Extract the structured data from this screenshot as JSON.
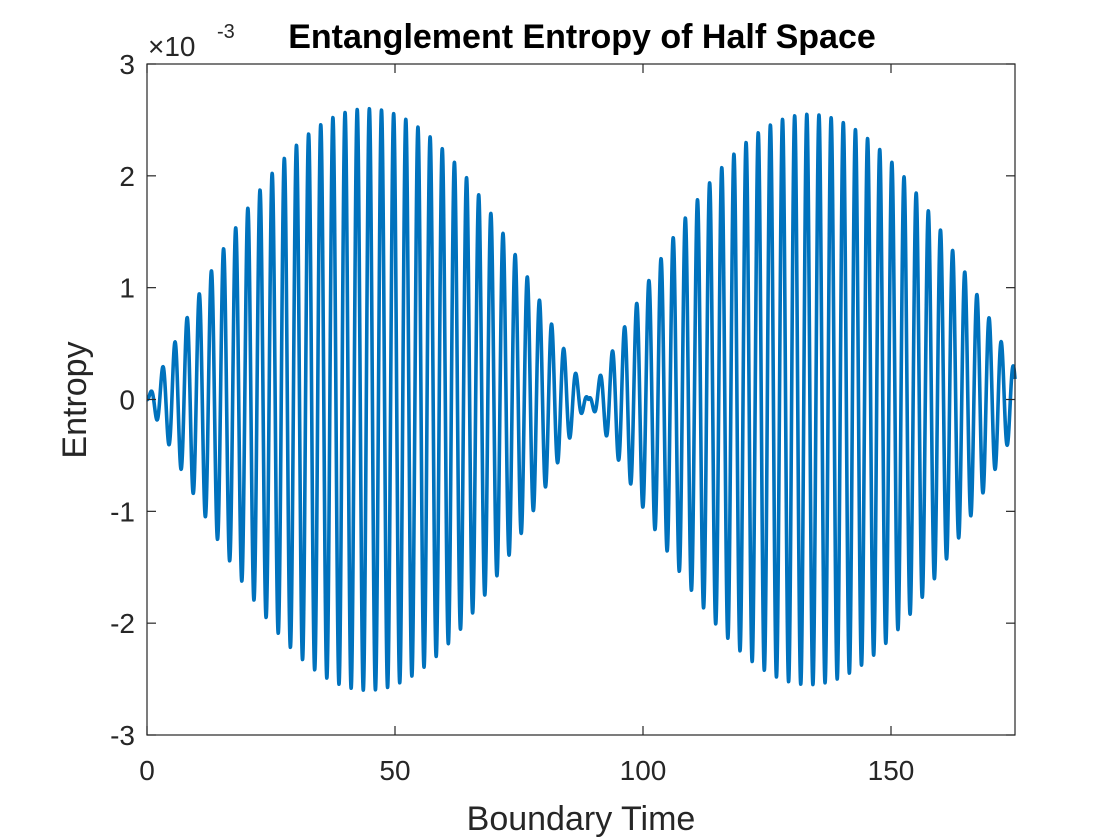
{
  "chart_data": {
    "type": "line",
    "title": "Entanglement Entropy of Half Space",
    "xlabel": "Boundary Time",
    "ylabel": "Entropy",
    "xlim": [
      0,
      175
    ],
    "ylim": [
      -3,
      3
    ],
    "y_scale_multiplier": "×10",
    "y_scale_exponent": "-3",
    "xticks": [
      0,
      50,
      100,
      150
    ],
    "yticks": [
      -3,
      -2,
      -1,
      0,
      1,
      2,
      3
    ],
    "xtick_labels": [
      "0",
      "50",
      "100",
      "150"
    ],
    "ytick_labels": [
      "-3",
      "-2",
      "-1",
      "0",
      "1",
      "2",
      "3"
    ],
    "grid": false,
    "legend": "none",
    "series": [
      {
        "line_color": "#0072BD",
        "beat_period": 89,
        "carrier_period": 2.45,
        "amplitude_envelope_peaks": [
          {
            "x": 45,
            "y": 2.6
          },
          {
            "x": 134,
            "y": 2.55
          }
        ],
        "description_values": {
          "x_start": 0,
          "x_end": 175,
          "y_at_end": 0.35
        }
      }
    ]
  }
}
